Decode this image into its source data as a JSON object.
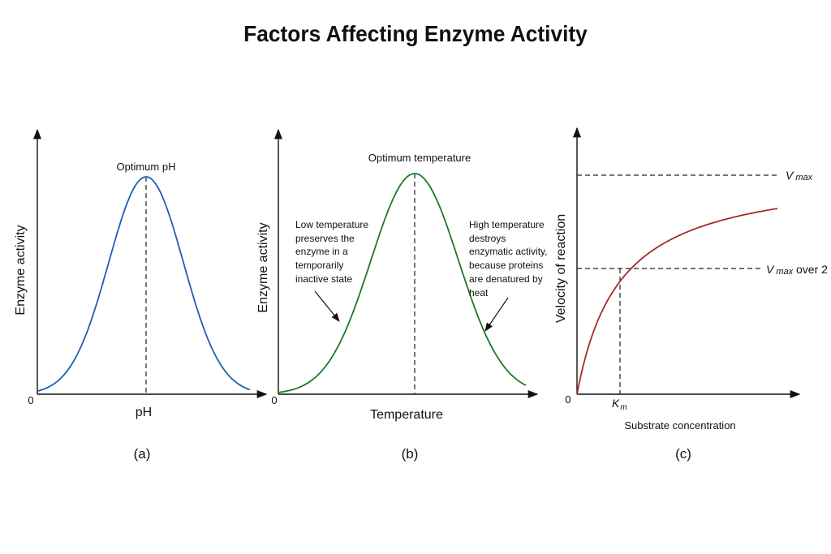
{
  "title": "Factors Affecting Enzyme Activity",
  "chart_data": [
    {
      "type": "line",
      "panel": "(a)",
      "xlabel": "pH",
      "ylabel": "Enzyme activity",
      "origin_label": "0",
      "annotations": [
        "Optimum pH"
      ],
      "series": [
        {
          "shape": "bell curve",
          "color": "#1f5fb0"
        }
      ]
    },
    {
      "type": "line",
      "panel": "(b)",
      "xlabel": "Temperature",
      "ylabel": "Enzyme activity",
      "origin_label": "0",
      "annotations": [
        "Optimum temperature",
        "Low temperature preserves the enzyme in a temporarily inactive state",
        "High temperature destroys enzymatic activity, because proteins are denatured by heat"
      ],
      "series": [
        {
          "shape": "bell curve",
          "color": "#1e7a26"
        }
      ]
    },
    {
      "type": "line",
      "panel": "(c)",
      "xlabel": "Substrate concentration",
      "ylabel": "Velocity of reaction",
      "origin_label": "0",
      "annotations": [
        "V max",
        "V max over 2",
        "Km"
      ],
      "series": [
        {
          "shape": "saturation curve (Michaelis-Menten)",
          "color": "#a52a2a"
        }
      ]
    }
  ],
  "panels": {
    "a": {
      "origin": "0",
      "xlabel": "pH",
      "ylabel": "Enzyme activity",
      "optimum": "Optimum pH",
      "caption": "(a)"
    },
    "b": {
      "origin": "0",
      "xlabel": "Temperature",
      "ylabel": "Enzyme activity",
      "optimum": "Optimum temperature",
      "caption": "(b)",
      "low_note": [
        "Low temperature",
        "preserves the",
        "enzyme in a",
        "temporarily",
        "inactive state"
      ],
      "high_note": [
        "High temperature",
        "destroys",
        "enzymatic activity,",
        "because proteins",
        "are denatured by",
        "heat"
      ]
    },
    "c": {
      "origin": "0",
      "xlabel": "Substrate concentration",
      "ylabel": "Velocity of reaction",
      "vmax_v": "V",
      "vmax_sub": "max",
      "vhalf_v": "V",
      "vhalf_sub": "max",
      "vhalf_tail": " over 2",
      "km_k": "K",
      "km_sub": "m",
      "caption": "(c)"
    }
  },
  "colors": {
    "curve_a": "#1f5fb0",
    "curve_b": "#1e7a26",
    "curve_c": "#a52a2a"
  }
}
